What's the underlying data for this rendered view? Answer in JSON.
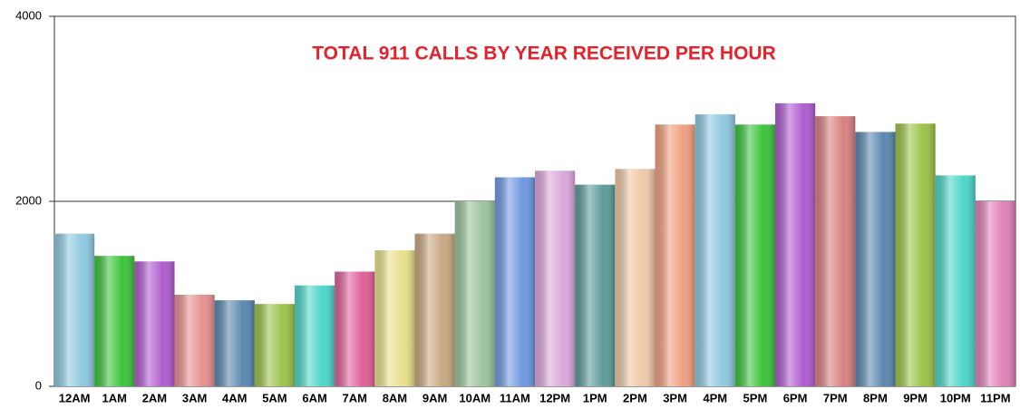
{
  "chart_data": {
    "type": "bar",
    "title": "TOTAL 911 CALLS BY YEAR RECEIVED PER HOUR",
    "categories": [
      "12AM",
      "1AM",
      "2AM",
      "3AM",
      "4AM",
      "5AM",
      "6AM",
      "7AM",
      "8AM",
      "9AM",
      "10AM",
      "11AM",
      "12PM",
      "1PM",
      "2PM",
      "3PM",
      "4PM",
      "5PM",
      "6PM",
      "7PM",
      "8PM",
      "9PM",
      "10PM",
      "11PM"
    ],
    "values": [
      1650,
      1410,
      1350,
      990,
      930,
      890,
      1090,
      1240,
      1470,
      1650,
      2000,
      2260,
      2330,
      2180,
      2350,
      2830,
      2940,
      2830,
      3060,
      2920,
      2750,
      2840,
      2280,
      2000
    ],
    "colors": [
      "#8ec9e0",
      "#3cc43c",
      "#b05ccf",
      "#e89090",
      "#5b88b0",
      "#9cc24a",
      "#4dd6c9",
      "#e0609a",
      "#e8e08a",
      "#c8a882",
      "#9cc49c",
      "#6f98e0",
      "#dca8dc",
      "#5e9c9c",
      "#eec8a8",
      "#f0a080",
      "#8ec9e0",
      "#3cc43c",
      "#b05ccf",
      "#d88080",
      "#5b88b0",
      "#9cc24a",
      "#4dd6c9",
      "#e080b8"
    ],
    "ylim": [
      0,
      4000
    ],
    "yticks": [
      0,
      2000,
      4000
    ],
    "grid": true
  }
}
